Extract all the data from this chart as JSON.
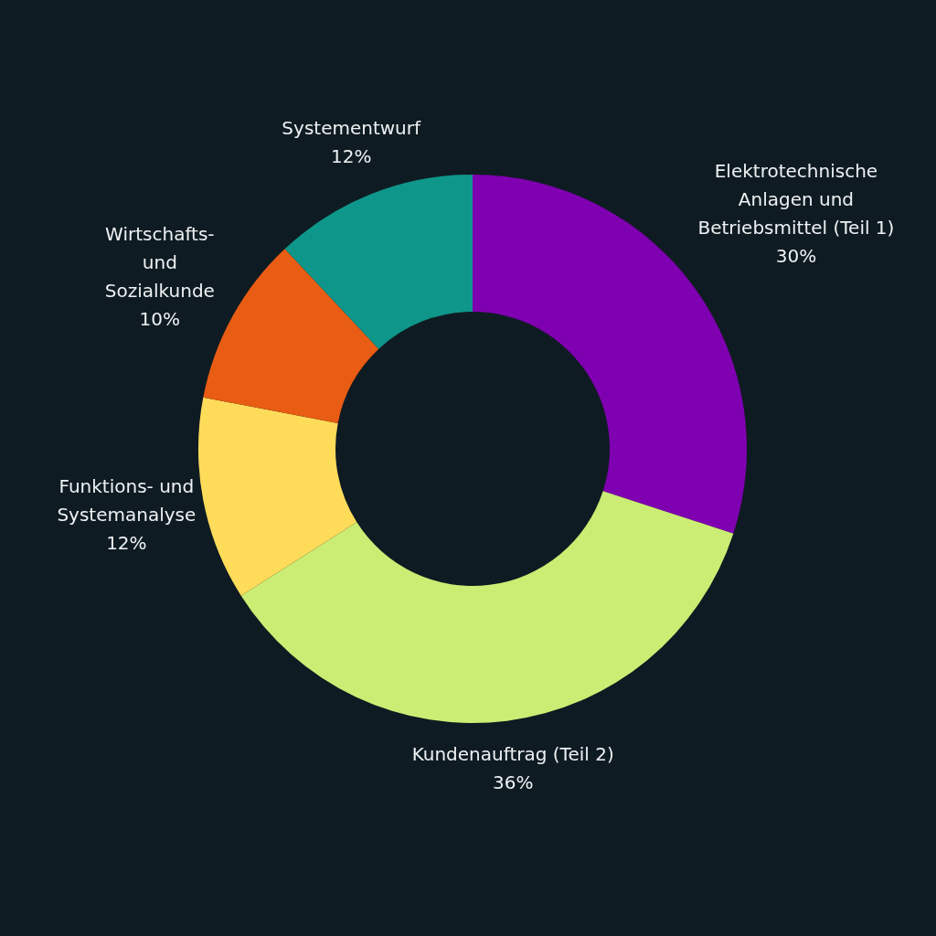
{
  "chart_data": {
    "type": "donut",
    "categories": [
      "Elektrotechnische\nAnlagen und\nBetriebsmittel (Teil 1)",
      "Kundenauftrag (Teil 2)",
      "Funktions- und\nSystemanalyse",
      "Wirtschafts-\nund\nSozialkunde",
      "Systementwurf"
    ],
    "values": [
      30,
      36,
      12,
      10,
      12
    ],
    "value_labels": [
      "30%",
      "36%",
      "12%",
      "10%",
      "12%"
    ],
    "colors": [
      "#7f00b0",
      "#cbed74",
      "#fedc5a",
      "#e95c14",
      "#0e968a"
    ],
    "legend": false
  }
}
